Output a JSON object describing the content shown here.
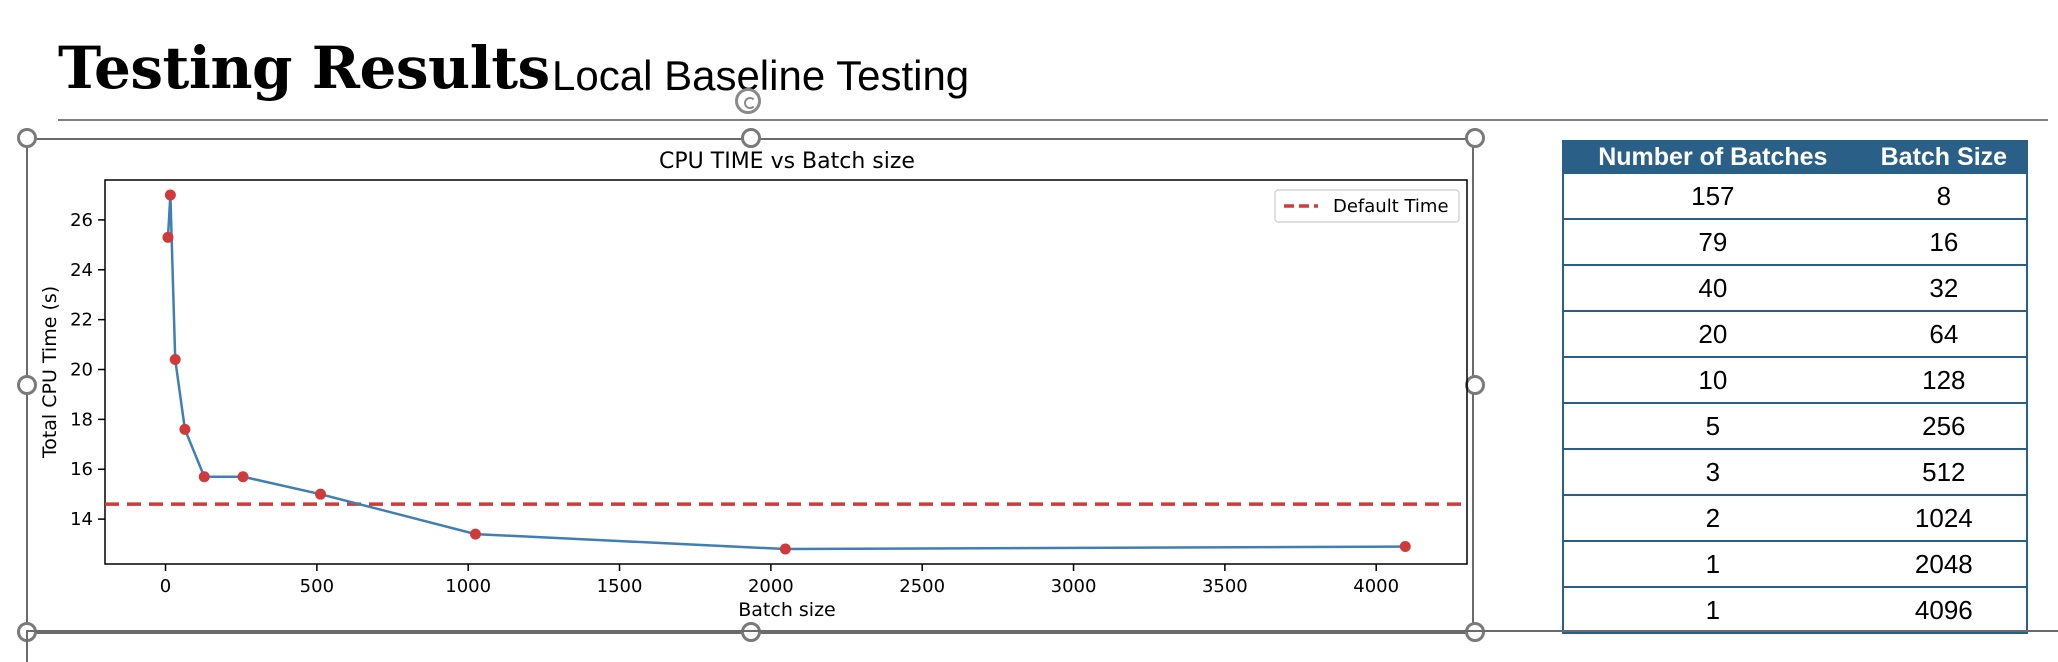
{
  "header": {
    "title": "Testing Results",
    "subtitle": "Local Baseline Testing"
  },
  "colors": {
    "line": "#3f7fb4",
    "points": "#d13a3a",
    "default_line": "#d13a3a",
    "table_header": "#2a5f88"
  },
  "chart_data": {
    "type": "line",
    "title": "CPU TIME vs Batch size",
    "xlabel": "Batch size",
    "ylabel": "Total CPU Time (s)",
    "xlim": [
      -200,
      4300
    ],
    "ylim": [
      12.2,
      27.6
    ],
    "xticks": [
      0,
      500,
      1000,
      1500,
      2000,
      2500,
      3000,
      3500,
      4000
    ],
    "yticks": [
      14,
      16,
      18,
      20,
      22,
      24,
      26
    ],
    "series": [
      {
        "x": [
          8,
          16,
          32,
          64,
          128,
          256,
          512,
          1024,
          2048,
          4096
        ],
        "y": [
          25.3,
          27.0,
          20.4,
          17.6,
          15.7,
          15.7,
          15.0,
          13.4,
          12.8,
          12.9
        ]
      }
    ],
    "reference_line": {
      "name": "Default Time",
      "y": 14.6,
      "style": "dashed"
    },
    "legend": {
      "position": "top-right",
      "entries": [
        "Default Time"
      ]
    },
    "grid": false
  },
  "table": {
    "headers": [
      "Number of Batches",
      "Batch Size"
    ],
    "rows": [
      [
        "157",
        "8"
      ],
      [
        "79",
        "16"
      ],
      [
        "40",
        "32"
      ],
      [
        "20",
        "64"
      ],
      [
        "10",
        "128"
      ],
      [
        "5",
        "256"
      ],
      [
        "3",
        "512"
      ],
      [
        "2",
        "1024"
      ],
      [
        "1",
        "2048"
      ],
      [
        "1",
        "4096"
      ]
    ]
  }
}
